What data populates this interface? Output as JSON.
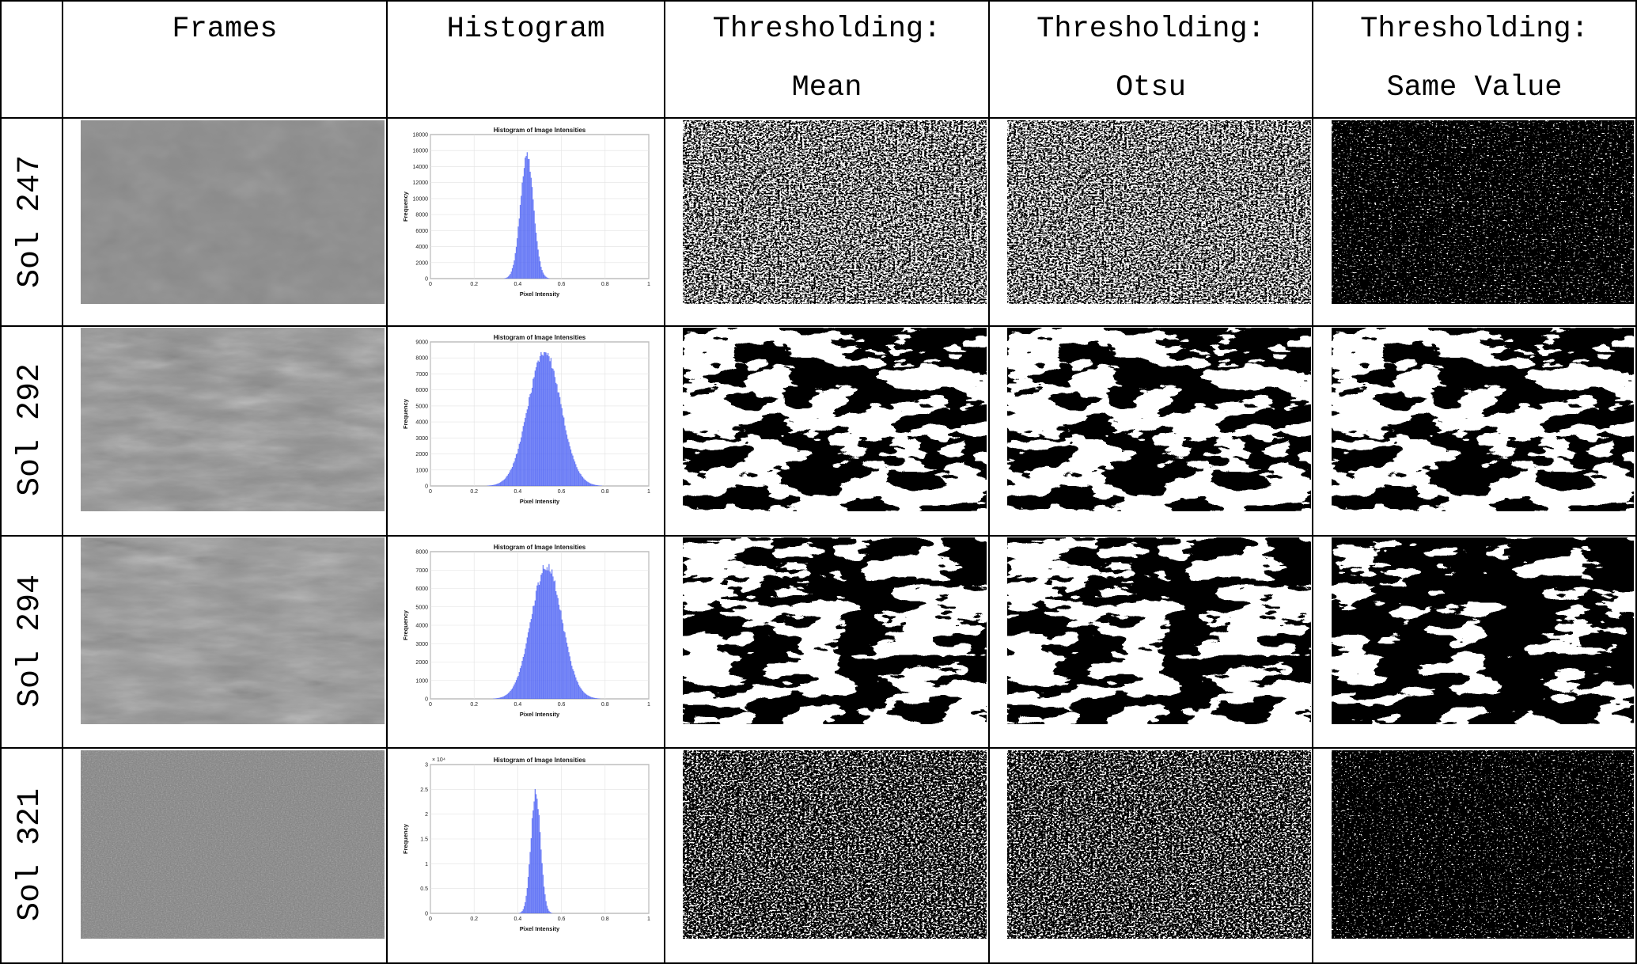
{
  "table": {
    "headers": [
      "Frames",
      "Histogram",
      "Thresholding:\nMean",
      "Thresholding:\nOtsu",
      "Thresholding:\nSame Value"
    ],
    "rows": [
      {
        "label": "Sol 247",
        "frame_tone": "#8a8a8a",
        "frame_texture": "smooth",
        "mean_white_fraction": 0.5,
        "otsu_white_fraction": 0.5,
        "same_white_fraction": 0.02,
        "histogram": {
          "title": "Histogram of Image Intensities",
          "xlabel": "Pixel Intensity",
          "ylabel": "Frequency",
          "multiplier": "",
          "xticks": [
            "0",
            "0.2",
            "0.4",
            "0.6",
            "0.8",
            "1"
          ],
          "yticks": [
            "0",
            "2000",
            "4000",
            "6000",
            "8000",
            "10000",
            "12000",
            "14000",
            "16000",
            "18000"
          ],
          "ymax": 18000,
          "peak": 16000,
          "mu": 0.44,
          "sigma": 0.03
        }
      },
      {
        "label": "Sol 292",
        "frame_tone": "#8f8f8f",
        "frame_texture": "streaky",
        "mean_white_fraction": 0.55,
        "otsu_white_fraction": 0.55,
        "same_white_fraction": 0.5,
        "histogram": {
          "title": "Histogram of Image Intensities",
          "xlabel": "Pixel Intensity",
          "ylabel": "Frequency",
          "multiplier": "",
          "xticks": [
            "0",
            "0.2",
            "0.4",
            "0.6",
            "0.8",
            "1"
          ],
          "yticks": [
            "0",
            "1000",
            "2000",
            "3000",
            "4000",
            "5000",
            "6000",
            "7000",
            "8000",
            "9000"
          ],
          "ymax": 9000,
          "peak": 8700,
          "mu": 0.52,
          "sigma": 0.075
        }
      },
      {
        "label": "Sol 294",
        "frame_tone": "#929292",
        "frame_texture": "streaky",
        "mean_white_fraction": 0.45,
        "otsu_white_fraction": 0.45,
        "same_white_fraction": 0.35,
        "histogram": {
          "title": "Histogram of Image Intensities",
          "xlabel": "Pixel Intensity",
          "ylabel": "Frequency",
          "multiplier": "",
          "xticks": [
            "0",
            "0.2",
            "0.4",
            "0.6",
            "0.8",
            "1"
          ],
          "yticks": [
            "0",
            "1000",
            "2000",
            "3000",
            "4000",
            "5000",
            "6000",
            "7000",
            "8000"
          ],
          "ymax": 8000,
          "peak": 7500,
          "mu": 0.53,
          "sigma": 0.07
        }
      },
      {
        "label": "Sol 321",
        "frame_tone": "#7e7e7e",
        "frame_texture": "noisy",
        "mean_white_fraction": 0.35,
        "otsu_white_fraction": 0.35,
        "same_white_fraction": 0.01,
        "histogram": {
          "title": "Histogram of Image Intensities",
          "xlabel": "Pixel Intensity",
          "ylabel": "Frequency",
          "multiplier": "× 10⁴",
          "xticks": [
            "0",
            "0.2",
            "0.4",
            "0.6",
            "0.8",
            "1"
          ],
          "yticks": [
            "0",
            "0.5",
            "1",
            "1.5",
            "2",
            "2.5",
            "3"
          ],
          "ymax": 3,
          "peak": 2.55,
          "mu": 0.48,
          "sigma": 0.022
        }
      }
    ]
  },
  "colors": {
    "histogram_bar": "#4f64f5",
    "grid_line": "#000000"
  }
}
